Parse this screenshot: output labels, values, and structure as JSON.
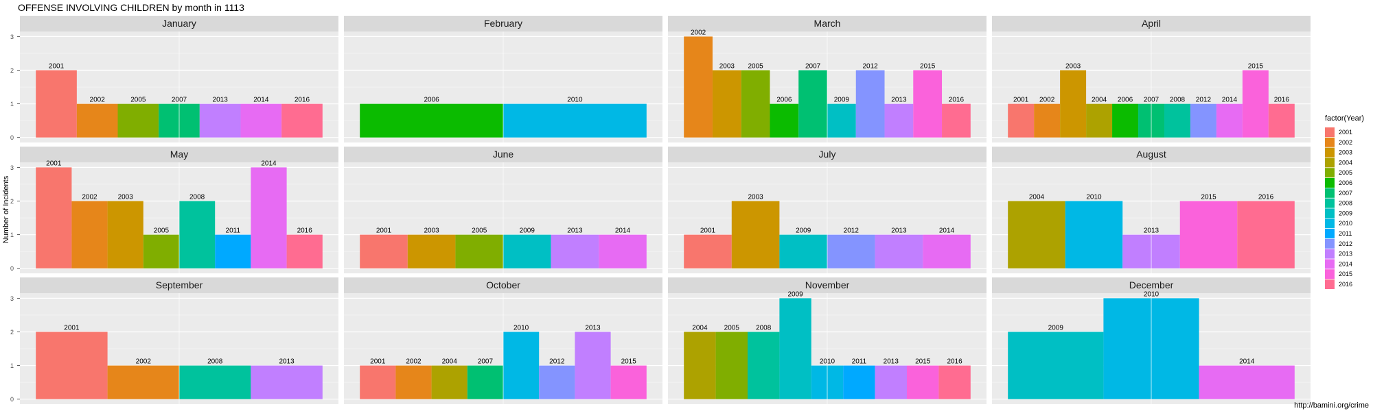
{
  "title": "OFFENSE INVOLVING CHILDREN by month in 1113",
  "source": "http://bamini.org/crime",
  "chart_data": {
    "type": "bar",
    "facet_layout": "3 rows x 4 columns",
    "ylabel": "Number of Incidents",
    "xlabel": "",
    "ylim": [
      0,
      3
    ],
    "yticks": [
      0,
      1,
      2,
      3
    ],
    "grid": true,
    "legend": {
      "title": "factor(Year)",
      "placement": "right",
      "entries": [
        {
          "year": "2001",
          "color": "#F8766D"
        },
        {
          "year": "2002",
          "color": "#E6861A"
        },
        {
          "year": "2003",
          "color": "#CC9600"
        },
        {
          "year": "2004",
          "color": "#ADA200"
        },
        {
          "year": "2005",
          "color": "#80AE00"
        },
        {
          "year": "2006",
          "color": "#0BBB00"
        },
        {
          "year": "2007",
          "color": "#00C072"
        },
        {
          "year": "2008",
          "color": "#00C29D"
        },
        {
          "year": "2009",
          "color": "#00BFC4"
        },
        {
          "year": "2010",
          "color": "#00B8E5"
        },
        {
          "year": "2011",
          "color": "#00A9FF"
        },
        {
          "year": "2012",
          "color": "#8494FF"
        },
        {
          "year": "2013",
          "color": "#C17FFF"
        },
        {
          "year": "2014",
          "color": "#E76BF3"
        },
        {
          "year": "2015",
          "color": "#FA62DB"
        },
        {
          "year": "2016",
          "color": "#FF6C91"
        }
      ]
    },
    "panels": [
      {
        "month": "January",
        "bars": [
          {
            "year": "2001",
            "value": 2
          },
          {
            "year": "2002",
            "value": 1
          },
          {
            "year": "2005",
            "value": 1
          },
          {
            "year": "2007",
            "value": 1
          },
          {
            "year": "2013",
            "value": 1
          },
          {
            "year": "2014",
            "value": 1
          },
          {
            "year": "2016",
            "value": 1
          }
        ]
      },
      {
        "month": "February",
        "bars": [
          {
            "year": "2006",
            "value": 1
          },
          {
            "year": "2010",
            "value": 1
          }
        ]
      },
      {
        "month": "March",
        "bars": [
          {
            "year": "2002",
            "value": 3
          },
          {
            "year": "2003",
            "value": 2
          },
          {
            "year": "2005",
            "value": 2
          },
          {
            "year": "2006",
            "value": 1
          },
          {
            "year": "2007",
            "value": 2
          },
          {
            "year": "2009",
            "value": 1
          },
          {
            "year": "2012",
            "value": 2
          },
          {
            "year": "2013",
            "value": 1
          },
          {
            "year": "2015",
            "value": 2
          },
          {
            "year": "2016",
            "value": 1
          }
        ]
      },
      {
        "month": "April",
        "bars": [
          {
            "year": "2001",
            "value": 1
          },
          {
            "year": "2002",
            "value": 1
          },
          {
            "year": "2003",
            "value": 2
          },
          {
            "year": "2004",
            "value": 1
          },
          {
            "year": "2006",
            "value": 1
          },
          {
            "year": "2007",
            "value": 1
          },
          {
            "year": "2008",
            "value": 1
          },
          {
            "year": "2012",
            "value": 1
          },
          {
            "year": "2014",
            "value": 1
          },
          {
            "year": "2015",
            "value": 2
          },
          {
            "year": "2016",
            "value": 1
          }
        ]
      },
      {
        "month": "May",
        "bars": [
          {
            "year": "2001",
            "value": 3
          },
          {
            "year": "2002",
            "value": 2
          },
          {
            "year": "2003",
            "value": 2
          },
          {
            "year": "2005",
            "value": 1
          },
          {
            "year": "2008",
            "value": 2
          },
          {
            "year": "2011",
            "value": 1
          },
          {
            "year": "2014",
            "value": 3
          },
          {
            "year": "2016",
            "value": 1
          }
        ]
      },
      {
        "month": "June",
        "bars": [
          {
            "year": "2001",
            "value": 1
          },
          {
            "year": "2003",
            "value": 1
          },
          {
            "year": "2005",
            "value": 1
          },
          {
            "year": "2009",
            "value": 1
          },
          {
            "year": "2013",
            "value": 1
          },
          {
            "year": "2014",
            "value": 1
          }
        ]
      },
      {
        "month": "July",
        "bars": [
          {
            "year": "2001",
            "value": 1
          },
          {
            "year": "2003",
            "value": 2
          },
          {
            "year": "2009",
            "value": 1
          },
          {
            "year": "2012",
            "value": 1
          },
          {
            "year": "2013",
            "value": 1
          },
          {
            "year": "2014",
            "value": 1
          }
        ]
      },
      {
        "month": "August",
        "bars": [
          {
            "year": "2004",
            "value": 2
          },
          {
            "year": "2010",
            "value": 2
          },
          {
            "year": "2013",
            "value": 1
          },
          {
            "year": "2015",
            "value": 2
          },
          {
            "year": "2016",
            "value": 2
          }
        ]
      },
      {
        "month": "September",
        "bars": [
          {
            "year": "2001",
            "value": 2
          },
          {
            "year": "2002",
            "value": 1
          },
          {
            "year": "2008",
            "value": 1
          },
          {
            "year": "2013",
            "value": 1
          }
        ]
      },
      {
        "month": "October",
        "bars": [
          {
            "year": "2001",
            "value": 1
          },
          {
            "year": "2002",
            "value": 1
          },
          {
            "year": "2004",
            "value": 1
          },
          {
            "year": "2007",
            "value": 1
          },
          {
            "year": "2010",
            "value": 2
          },
          {
            "year": "2012",
            "value": 1
          },
          {
            "year": "2013",
            "value": 2
          },
          {
            "year": "2015",
            "value": 1
          }
        ]
      },
      {
        "month": "November",
        "bars": [
          {
            "year": "2004",
            "value": 2
          },
          {
            "year": "2005",
            "value": 2
          },
          {
            "year": "2008",
            "value": 2
          },
          {
            "year": "2009",
            "value": 3
          },
          {
            "year": "2010",
            "value": 1
          },
          {
            "year": "2011",
            "value": 1
          },
          {
            "year": "2013",
            "value": 1
          },
          {
            "year": "2015",
            "value": 1
          },
          {
            "year": "2016",
            "value": 1
          }
        ]
      },
      {
        "month": "December",
        "bars": [
          {
            "year": "2009",
            "value": 2
          },
          {
            "year": "2010",
            "value": 3
          },
          {
            "year": "2014",
            "value": 1
          }
        ]
      }
    ]
  }
}
